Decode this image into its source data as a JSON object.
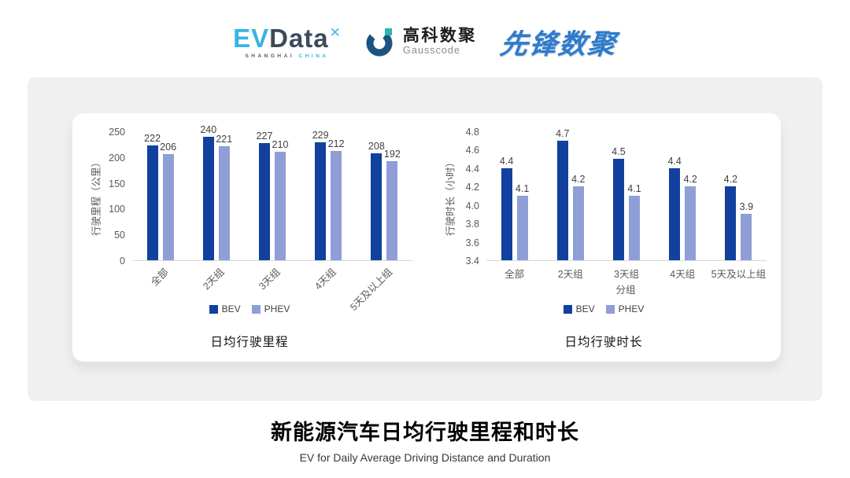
{
  "header": {
    "evdata": {
      "part1": "EV",
      "part2": "Data",
      "x_mark": "✕",
      "sub_left": "SHANGHAI",
      "sub_right": "CHINA"
    },
    "gausscode": {
      "name_cn": "高科数聚",
      "name_en": "Gausscode"
    },
    "xianfeng": {
      "name": "先锋数聚"
    }
  },
  "colors": {
    "bev": "#11409F",
    "phev": "#8F9ED6",
    "evdata_blue": "#38B3E4",
    "evdata_dark": "#3D4A5A",
    "gauss_dark": "#1B5480",
    "gauss_teal": "#2DB4AE",
    "xianfeng_blue": "#2E7BCB",
    "axis_line": "#D9D9D9",
    "card_gray": "#F0F0F1"
  },
  "chart_data": [
    {
      "type": "bar",
      "title": "日均行驶里程",
      "categories": [
        "全部",
        "2天组",
        "3天组",
        "4天组",
        "5天及以上组"
      ],
      "series": [
        {
          "name": "BEV",
          "values": [
            222,
            240,
            227,
            229,
            208
          ]
        },
        {
          "name": "PHEV",
          "values": [
            206,
            221,
            210,
            212,
            192
          ]
        }
      ],
      "xlabel": "",
      "ylabel": "行驶里程（公里）",
      "ylim": [
        0,
        250
      ],
      "ytick_step": 50,
      "ytick_decimals": 0,
      "value_decimals": 0,
      "x_tick_rotation": -45,
      "grid": false,
      "legend_position": "bottom"
    },
    {
      "type": "bar",
      "title": "日均行驶时长",
      "categories": [
        "全部",
        "2天组",
        "3天组",
        "4天组",
        "5天及以上组"
      ],
      "series": [
        {
          "name": "BEV",
          "values": [
            4.4,
            4.7,
            4.5,
            4.4,
            4.2
          ]
        },
        {
          "name": "PHEV",
          "values": [
            4.1,
            4.2,
            4.1,
            4.2,
            3.9
          ]
        }
      ],
      "xlabel": "分组",
      "ylabel": "行驶时长（小时）",
      "ylim": [
        3.4,
        4.8
      ],
      "ytick_step": 0.2,
      "ytick_decimals": 1,
      "value_decimals": 1,
      "x_tick_rotation": 0,
      "grid": false,
      "legend_position": "bottom"
    }
  ],
  "footer": {
    "title": "新能源汽车日均行驶里程和时长",
    "subtitle": "EV for Daily Average Driving Distance and Duration"
  }
}
